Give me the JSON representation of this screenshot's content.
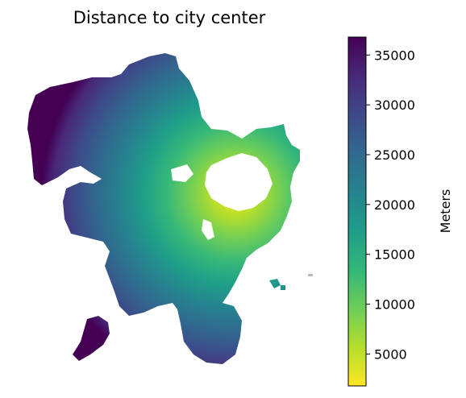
{
  "figure": {
    "title": "Distance to city center"
  },
  "colorbar": {
    "label": "Meters",
    "ticks": [
      5000,
      10000,
      15000,
      20000,
      25000,
      30000,
      35000
    ],
    "range": [
      1800,
      36800
    ],
    "colormap": "viridis_r"
  },
  "chart_data": {
    "type": "heatmap",
    "title": "Distance to city center",
    "colorbar_label": "Meters",
    "value_range": [
      1800,
      36800
    ],
    "colorbar_ticks": [
      5000,
      10000,
      15000,
      20000,
      25000,
      30000,
      35000
    ],
    "colormap": "viridis (reversed: yellow = near, purple = far)",
    "axes": "off",
    "grid": false
  },
  "colors": {
    "viridis": [
      "#440154",
      "#482878",
      "#3e4989",
      "#31688e",
      "#26828e",
      "#1f9e89",
      "#35b779",
      "#6ece58",
      "#b5de2b",
      "#fde725"
    ],
    "background": "#ffffff"
  }
}
